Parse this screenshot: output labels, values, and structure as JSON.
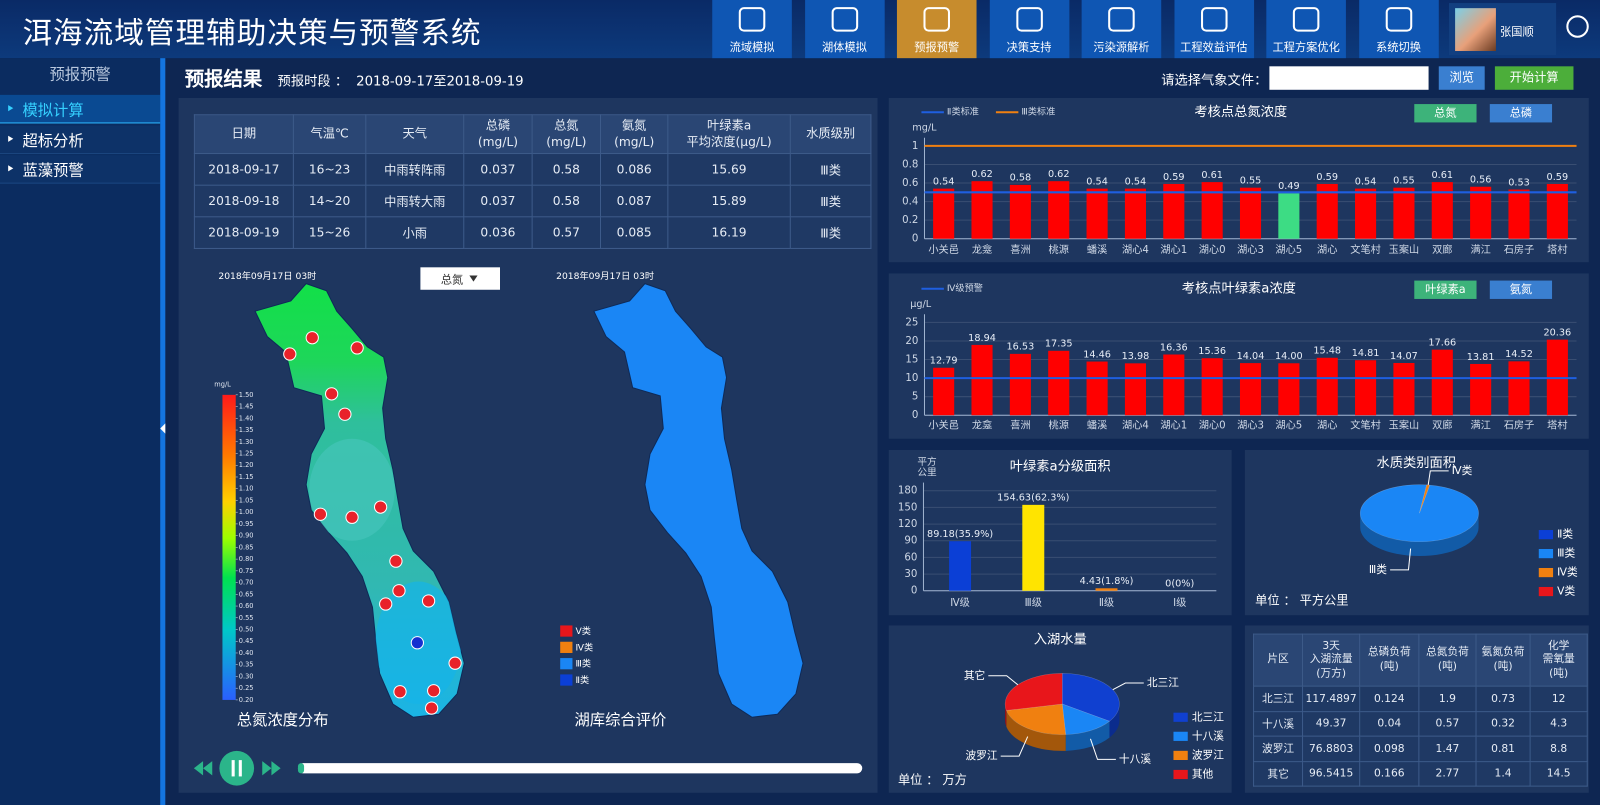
{
  "header": {
    "title": "洱海流域管理辅助决策与预警系统",
    "nav": [
      "流域模拟",
      "湖体模拟",
      "预报预警",
      "决策支持",
      "污染源解析",
      "工程效益评估",
      "工程方案优化",
      "系统切换"
    ],
    "active_nav": 2,
    "user": "张国顺"
  },
  "sidebar": {
    "title": "预报预警",
    "items": [
      "模拟计算",
      "超标分析",
      "蓝藻预警"
    ],
    "active": 0
  },
  "toolbar": {
    "title": "预报结果",
    "period_label": "预报时段 ：",
    "period": "2018-09-17至2018-09-19",
    "file_label": "请选择气象文件：",
    "browse": "浏览",
    "start": "开始计算"
  },
  "forecast_table": {
    "columns": [
      "日期",
      "气温℃",
      "天气",
      "总磷\n(mg/L)",
      "总氮\n(mg/L)",
      "氨氮\n(mg/L)",
      "叶绿素a\n平均浓度(μg/L)",
      "水质级别"
    ],
    "rows": [
      [
        "2018-09-17",
        "16~23",
        "中雨转阵雨",
        "0.037",
        "0.58",
        "0.086",
        "15.69",
        "Ⅲ类"
      ],
      [
        "2018-09-18",
        "14~20",
        "中雨转大雨",
        "0.037",
        "0.58",
        "0.087",
        "15.89",
        "Ⅲ类"
      ],
      [
        "2018-09-19",
        "15~26",
        "小雨",
        "0.036",
        "0.57",
        "0.085",
        "16.19",
        "Ⅲ类"
      ]
    ]
  },
  "maps": {
    "left": {
      "time": "2018年09月17日 03时",
      "selector": "总氮",
      "unit": "mg/L",
      "caption": "总氮浓度分布",
      "range": [
        0.2,
        1.5
      ],
      "colorbar_ticks": [
        {
          "value": 0.2,
          "label": "0.20"
        },
        0.25,
        {
          "value": 0.3,
          "label": "0.30"
        },
        0.35,
        {
          "value": 0.4,
          "label": "0.40"
        },
        0.45,
        {
          "value": 0.5,
          "label": "0.50"
        },
        0.55,
        {
          "value": 0.6,
          "label": "0.60"
        },
        0.65,
        {
          "value": 0.7,
          "label": "0.70"
        },
        0.75,
        {
          "value": 0.8,
          "label": "0.80"
        },
        0.85,
        {
          "value": 0.9,
          "label": "0.90"
        },
        0.95,
        {
          "value": 1,
          "label": "1.00"
        },
        1.05,
        {
          "value": 1.1,
          "label": "1.10"
        },
        1.15,
        {
          "value": 1.2,
          "label": "1.20"
        },
        1.25,
        {
          "value": 1.3,
          "label": "1.30"
        },
        1.35,
        {
          "value": 1.4,
          "label": "1.40"
        },
        1.45,
        {
          "value": 1.5,
          "label": "1.50"
        }
      ]
    },
    "right": {
      "time": "2018年09月17日 03时",
      "caption": "湖库综合评价",
      "legend": [
        {
          "name": "Ⅴ类",
          "color": "#e8161b"
        },
        {
          "name": "Ⅳ类",
          "color": "#f08010"
        },
        {
          "name": "Ⅲ类",
          "color": "#1a86f5"
        },
        {
          "name": "Ⅱ类",
          "color": "#0b3fd6"
        }
      ]
    }
  },
  "charts": [
    {
      "type": "bar",
      "title": "考核点总氮浓度",
      "y_unit": "mg/L",
      "buttons": [
        "总氮",
        "总磷"
      ],
      "categories": [
        "小关邑",
        "龙龛",
        "喜洲",
        "桃源",
        "蟠溪",
        "湖心4",
        "湖心1",
        "湖心0",
        "湖心3",
        "湖心5",
        "湖心",
        "文笔村",
        "玉案山",
        "双廊",
        "满江",
        "石房子",
        "塔村"
      ],
      "values": [
        0.54,
        0.62,
        0.58,
        0.62,
        0.54,
        0.54,
        0.59,
        0.61,
        0.55,
        0.49,
        0.59,
        0.54,
        0.55,
        0.61,
        0.56,
        0.53,
        0.59
      ],
      "colors": [
        "#ff0000",
        "#ff0000",
        "#ff0000",
        "#ff0000",
        "#ff0000",
        "#ff0000",
        "#ff0000",
        "#ff0000",
        "#ff0000",
        "#3ddc84",
        "#ff0000",
        "#ff0000",
        "#ff0000",
        "#ff0000",
        "#ff0000",
        "#ff0000",
        "#ff0000"
      ],
      "reference_lines": [
        {
          "name": "Ⅱ类标准",
          "value": 0.5,
          "color": "#1f5fe0"
        },
        {
          "name": "Ⅲ类标准",
          "value": 1,
          "color": "#f08010"
        }
      ],
      "ylim": [
        0,
        1
      ],
      "yticks": [
        0,
        0.2,
        0.4,
        0.6,
        0.8,
        1
      ],
      "grid": true
    },
    {
      "type": "bar",
      "title": "考核点叶绿素a浓度",
      "y_unit": "μg/L",
      "buttons": [
        "叶绿素a",
        "氨氮"
      ],
      "categories": [
        "小关邑",
        "龙龛",
        "喜洲",
        "桃源",
        "蟠溪",
        "湖心4",
        "湖心1",
        "湖心0",
        "湖心3",
        "湖心5",
        "湖心",
        "文笔村",
        "玉案山",
        "双廊",
        "满江",
        "石房子",
        "塔村"
      ],
      "values": [
        12.79,
        18.94,
        16.53,
        17.35,
        14.46,
        13.98,
        16.36,
        15.36,
        14.04,
        14,
        15.48,
        14.81,
        14.07,
        17.66,
        13.81,
        14.52,
        20.36
      ],
      "value_labels": [
        "12.79",
        "18.94",
        "16.53",
        "17.35",
        "14.46",
        "13.98",
        "16.36",
        "15.36",
        "14.04",
        "14.00",
        "15.48",
        "14.81",
        "14.07",
        "17.66",
        "13.81",
        "14.52",
        "20.36"
      ],
      "color": "#ff0000",
      "reference_lines": [
        {
          "name": "Ⅳ级预警",
          "value": 10,
          "color": "#1f5fe0"
        }
      ],
      "ylim": [
        0,
        25
      ],
      "yticks": [
        0,
        5,
        10,
        15,
        20,
        25
      ],
      "grid": true
    },
    {
      "type": "bar",
      "title": "叶绿素a分级面积",
      "y_unit": "平方\n公里",
      "categories": [
        "Ⅳ级",
        "Ⅲ级",
        "Ⅱ级",
        "Ⅰ级"
      ],
      "values": [
        89.18,
        154.63,
        4.43,
        0
      ],
      "value_labels": [
        "89.18(35.9%)",
        "154.63(62.3%)",
        "4.43(1.8%)",
        "0(0%)"
      ],
      "colors": [
        "#0b3fd6",
        "#ffe400",
        "#f08010",
        "#2fbf5f"
      ],
      "ylim": [
        0,
        180
      ],
      "yticks": [
        0,
        30,
        60,
        90,
        120,
        150,
        180
      ],
      "grid": true
    },
    {
      "type": "pie",
      "title": "水质类别面积",
      "categories": [
        "Ⅱ类",
        "Ⅲ类",
        "Ⅳ类",
        "Ⅴ类"
      ],
      "values": [
        0,
        246,
        2,
        0
      ],
      "colors": [
        "#0b3fd6",
        "#1a86f5",
        "#f08010",
        "#e8161b"
      ],
      "unit_label": "单位 ： 平方公里"
    },
    {
      "type": "pie",
      "title": "入湖水量",
      "categories": [
        "北三江",
        "十八溪",
        "波罗江",
        "其他"
      ],
      "slice_labels": [
        "北三江",
        "十八溪",
        "波罗江",
        "其它"
      ],
      "values": [
        117.4897,
        49.37,
        76.8803,
        96.5415
      ],
      "colors": [
        "#1040d0",
        "#1a86f5",
        "#f08010",
        "#e8161b"
      ],
      "unit_label": "单位 ： 万方"
    }
  ],
  "load_table": {
    "columns": [
      "片区",
      "3天\n入湖流量\n(万方)",
      "总磷负荷\n(吨)",
      "总氮负荷\n(吨)",
      "氨氮负荷\n(吨)",
      "化学\n需氧量\n(吨)"
    ],
    "rows": [
      [
        "北三江",
        "117.4897",
        "0.124",
        "1.9",
        "0.73",
        "12"
      ],
      [
        "十八溪",
        "49.37",
        "0.04",
        "0.57",
        "0.32",
        "4.3"
      ],
      [
        "波罗江",
        "76.8803",
        "0.098",
        "1.47",
        "0.81",
        "8.8"
      ],
      [
        "其它",
        "96.5415",
        "0.166",
        "2.77",
        "1.4",
        "14.5"
      ]
    ]
  }
}
